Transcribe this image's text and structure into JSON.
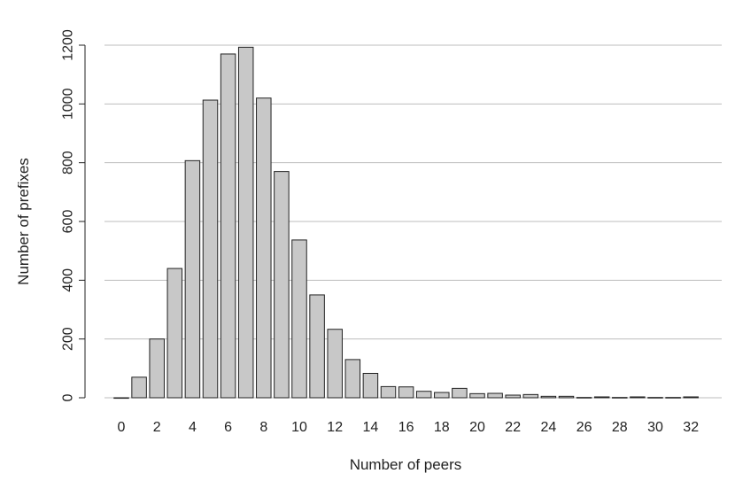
{
  "chart_data": {
    "type": "bar",
    "title": "",
    "xlabel": "Number of peers",
    "ylabel": "Number of prefixes",
    "x": [
      0,
      1,
      2,
      3,
      4,
      5,
      6,
      7,
      8,
      9,
      10,
      11,
      12,
      13,
      14,
      15,
      16,
      17,
      18,
      19,
      20,
      21,
      22,
      23,
      24,
      25,
      26,
      27,
      28,
      29,
      30,
      31,
      32
    ],
    "values": [
      0,
      70,
      200,
      440,
      807,
      1013,
      1170,
      1193,
      1020,
      770,
      537,
      350,
      233,
      130,
      83,
      38,
      37,
      22,
      18,
      32,
      14,
      15,
      9,
      11,
      5,
      5,
      1,
      3,
      1,
      3,
      1,
      1,
      3
    ],
    "x_ticks": [
      "0",
      "2",
      "4",
      "6",
      "8",
      "10",
      "12",
      "14",
      "16",
      "18",
      "20",
      "22",
      "24",
      "26",
      "28",
      "30",
      "32"
    ],
    "y_ticks": [
      "0",
      "200",
      "400",
      "600",
      "800",
      "1000",
      "1200"
    ],
    "ylim": [
      0,
      1200
    ],
    "grid": "horizontal",
    "colors": {
      "bar_fill": "#c8c8c8",
      "bar_stroke": "#222222",
      "grid": "#bdbdbd"
    }
  }
}
